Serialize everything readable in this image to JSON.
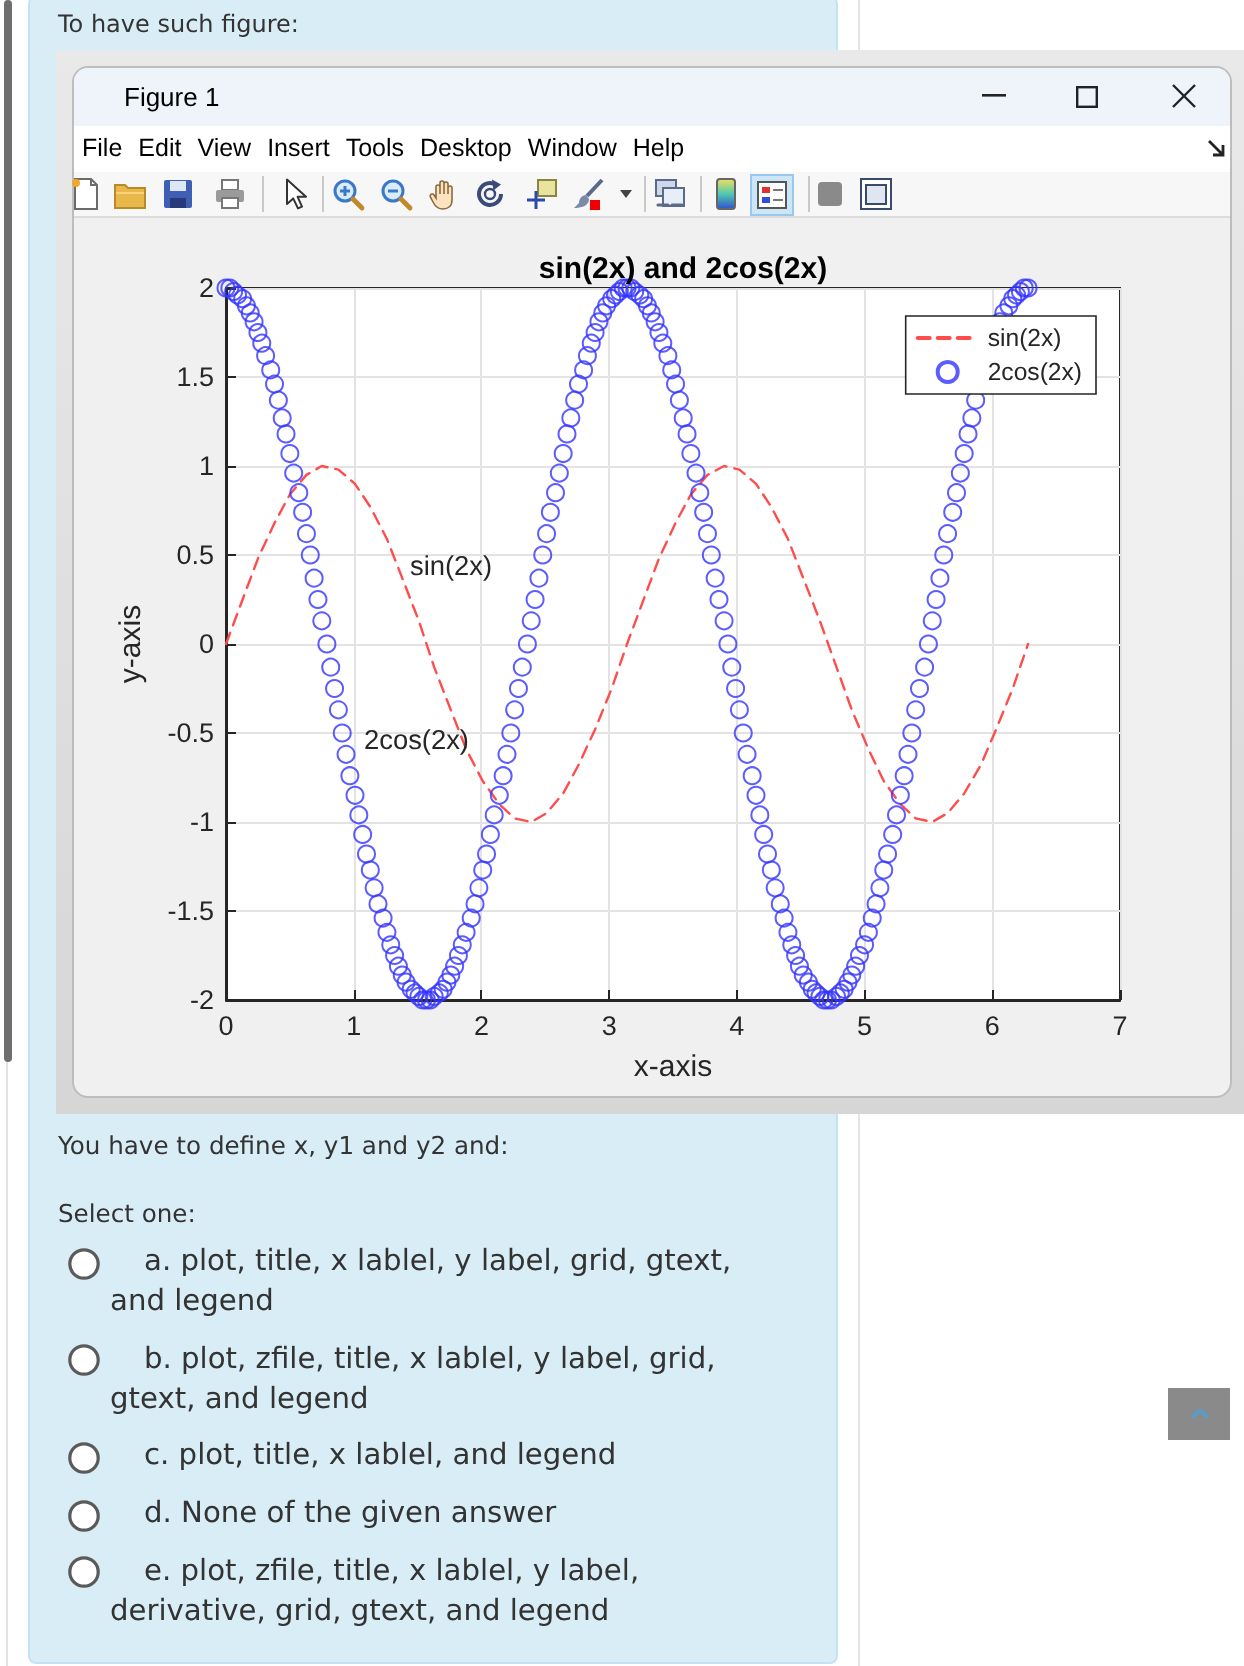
{
  "chart_data": {
    "type": "line",
    "title": "sin(2x) and 2cos(2x)",
    "xlabel": "x-axis",
    "ylabel": "y-axis",
    "series": [
      {
        "name": "sin(2x)",
        "color": "#ff4d4d",
        "line_style": "dashed",
        "x": [
          0,
          0.13,
          0.25,
          0.38,
          0.5,
          0.63,
          0.75,
          0.88,
          1.01,
          1.13,
          1.26,
          1.38,
          1.51,
          1.63,
          1.76,
          1.88,
          2.01,
          2.14,
          2.26,
          2.39,
          2.51,
          2.64,
          2.76,
          2.89,
          3.02,
          3.14,
          3.27,
          3.39,
          3.52,
          3.64,
          3.77,
          3.9,
          4.02,
          4.15,
          4.27,
          4.4,
          4.52,
          4.65,
          4.78,
          4.9,
          5.03,
          5.15,
          5.28,
          5.4,
          5.53,
          5.65,
          5.78,
          5.91,
          6.03,
          6.16,
          6.28
        ],
        "values": [
          0,
          0.25,
          0.48,
          0.68,
          0.84,
          0.95,
          1,
          0.98,
          0.9,
          0.77,
          0.59,
          0.37,
          0.13,
          -0.13,
          -0.37,
          -0.59,
          -0.77,
          -0.9,
          -0.98,
          -1,
          -0.95,
          -0.84,
          -0.68,
          -0.48,
          -0.25,
          0,
          0.25,
          0.48,
          0.68,
          0.84,
          0.95,
          1,
          0.98,
          0.9,
          0.77,
          0.59,
          0.37,
          0.13,
          -0.13,
          -0.37,
          -0.59,
          -0.77,
          -0.9,
          -0.98,
          -1,
          -0.95,
          -0.84,
          -0.68,
          -0.48,
          -0.25,
          0
        ]
      },
      {
        "name": "2cos(2x)",
        "type": "scatter",
        "color": "#3333ff",
        "marker": "circle",
        "x": [
          0,
          0.03,
          0.06,
          0.09,
          0.13,
          0.16,
          0.19,
          0.22,
          0.25,
          0.28,
          0.31,
          0.35,
          0.38,
          0.41,
          0.44,
          0.47,
          0.5,
          0.53,
          0.57,
          0.6,
          0.63,
          0.66,
          0.69,
          0.72,
          0.75,
          0.79,
          0.82,
          0.85,
          0.88,
          0.91,
          0.94,
          0.97,
          1.01,
          1.04,
          1.07,
          1.1,
          1.13,
          1.16,
          1.19,
          1.23,
          1.26,
          1.29,
          1.32,
          1.35,
          1.38,
          1.41,
          1.45,
          1.48,
          1.51,
          1.54,
          1.57,
          1.6,
          1.63,
          1.67,
          1.7,
          1.73,
          1.76,
          1.79,
          1.82,
          1.85,
          1.88,
          1.92,
          1.95,
          1.98,
          2.01,
          2.04,
          2.07,
          2.1,
          2.14,
          2.17,
          2.2,
          2.23,
          2.26,
          2.29,
          2.32,
          2.36,
          2.39,
          2.42,
          2.45,
          2.48,
          2.51,
          2.54,
          2.58,
          2.61,
          2.64,
          2.67,
          2.7,
          2.73,
          2.76,
          2.8,
          2.83,
          2.86,
          2.89,
          2.92,
          2.95,
          2.98,
          3.02,
          3.05,
          3.08,
          3.11,
          3.14,
          3.17,
          3.2,
          3.24,
          3.27,
          3.3,
          3.33,
          3.36,
          3.39,
          3.42,
          3.46,
          3.49,
          3.52,
          3.55,
          3.58,
          3.61,
          3.64,
          3.68,
          3.71,
          3.74,
          3.77,
          3.8,
          3.83,
          3.86,
          3.9,
          3.93,
          3.96,
          3.99,
          4.02,
          4.05,
          4.08,
          4.12,
          4.15,
          4.18,
          4.21,
          4.24,
          4.27,
          4.3,
          4.34,
          4.37,
          4.4,
          4.43,
          4.46,
          4.49,
          4.52,
          4.56,
          4.59,
          4.62,
          4.65,
          4.68,
          4.71,
          4.74,
          4.78,
          4.81,
          4.84,
          4.87,
          4.9,
          4.93,
          4.96,
          5,
          5.03,
          5.06,
          5.09,
          5.12,
          5.15,
          5.18,
          5.22,
          5.25,
          5.28,
          5.31,
          5.34,
          5.37,
          5.4,
          5.43,
          5.47,
          5.5,
          5.53,
          5.56,
          5.59,
          5.62,
          5.65,
          5.69,
          5.72,
          5.75,
          5.78,
          5.81,
          5.84,
          5.87,
          5.91,
          5.94,
          5.97,
          6,
          6.03,
          6.06,
          6.09,
          6.13,
          6.16,
          6.19,
          6.22,
          6.25,
          6.28
        ],
        "values": [
          2,
          2,
          1.98,
          1.96,
          1.94,
          1.9,
          1.86,
          1.81,
          1.75,
          1.69,
          1.62,
          1.54,
          1.46,
          1.37,
          1.27,
          1.18,
          1.07,
          0.96,
          0.85,
          0.74,
          0.62,
          0.5,
          0.37,
          0.25,
          0.13,
          0,
          -0.13,
          -0.25,
          -0.37,
          -0.5,
          -0.62,
          -0.74,
          -0.85,
          -0.96,
          -1.07,
          -1.18,
          -1.27,
          -1.37,
          -1.46,
          -1.54,
          -1.62,
          -1.69,
          -1.75,
          -1.81,
          -1.86,
          -1.9,
          -1.94,
          -1.96,
          -1.98,
          -2,
          -2,
          -2,
          -1.98,
          -1.96,
          -1.94,
          -1.9,
          -1.86,
          -1.81,
          -1.75,
          -1.69,
          -1.62,
          -1.54,
          -1.46,
          -1.37,
          -1.27,
          -1.18,
          -1.07,
          -0.96,
          -0.85,
          -0.74,
          -0.62,
          -0.5,
          -0.37,
          -0.25,
          -0.13,
          0,
          0.13,
          0.25,
          0.37,
          0.5,
          0.62,
          0.74,
          0.85,
          0.96,
          1.07,
          1.18,
          1.27,
          1.37,
          1.46,
          1.54,
          1.62,
          1.69,
          1.75,
          1.81,
          1.86,
          1.9,
          1.94,
          1.96,
          1.98,
          2,
          2,
          2,
          1.98,
          1.96,
          1.94,
          1.9,
          1.86,
          1.81,
          1.75,
          1.69,
          1.62,
          1.54,
          1.46,
          1.37,
          1.27,
          1.18,
          1.07,
          0.96,
          0.85,
          0.74,
          0.62,
          0.5,
          0.37,
          0.25,
          0.13,
          0,
          -0.13,
          -0.25,
          -0.37,
          -0.5,
          -0.62,
          -0.74,
          -0.85,
          -0.96,
          -1.07,
          -1.18,
          -1.27,
          -1.37,
          -1.46,
          -1.54,
          -1.62,
          -1.69,
          -1.75,
          -1.81,
          -1.86,
          -1.9,
          -1.94,
          -1.96,
          -1.98,
          -2,
          -2,
          -2,
          -1.98,
          -1.96,
          -1.94,
          -1.9,
          -1.86,
          -1.81,
          -1.75,
          -1.69,
          -1.62,
          -1.54,
          -1.46,
          -1.37,
          -1.27,
          -1.18,
          -1.07,
          -0.96,
          -0.85,
          -0.74,
          -0.62,
          -0.5,
          -0.37,
          -0.25,
          -0.13,
          0,
          0.13,
          0.25,
          0.37,
          0.5,
          0.62,
          0.74,
          0.85,
          0.96,
          1.07,
          1.18,
          1.27,
          1.37,
          null,
          null,
          null,
          null,
          null,
          1.81,
          1.86,
          1.9,
          1.94,
          1.96,
          1.98,
          2,
          2
        ]
      }
    ],
    "xlim": [
      0,
      7
    ],
    "xticks": [
      0,
      1,
      2,
      3,
      4,
      5,
      6,
      7
    ],
    "ylim": [
      -2,
      2
    ],
    "yticks": [
      -2,
      -1.5,
      -1,
      -0.5,
      0,
      0.5,
      1,
      1.5,
      2
    ],
    "grid": true,
    "legend": "top right",
    "annotations": [
      "sin(2x)",
      "2cos(2x)",
      "To have such figure:",
      "Figure 1",
      "File",
      "Edit",
      "View",
      "Insert",
      "Tools",
      "Desktop",
      "Window",
      "Help",
      "You have to define x, y1 and y2 and:",
      "Select one:",
      "a. plot, title, x lablel, y label, grid, gtext, and legend",
      "b. plot, zfile, title, x lablel, y label, grid, gtext, and legend",
      "c. plot, title, x lablel, and legend",
      "d. None of the given answer",
      "e. plot, zfile, title, x lablel, y label, derivative, grid, gtext, and legend"
    ]
  }
}
